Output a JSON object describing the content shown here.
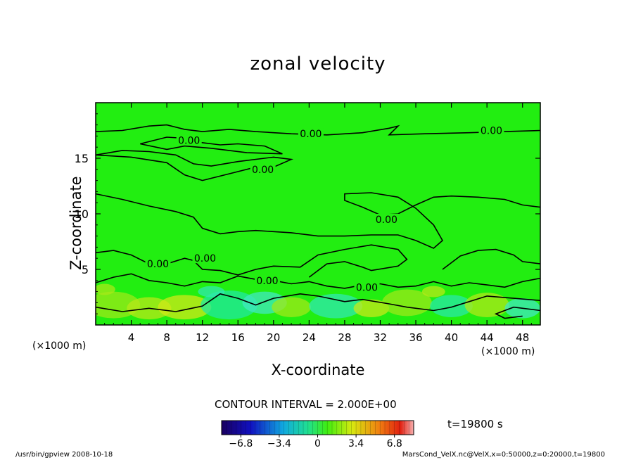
{
  "chart_data": {
    "type": "heatmap",
    "title": "zonal velocity",
    "xlabel": "X-coordinate",
    "ylabel": "Z-coordinate",
    "x_unit": "(×1000 m)",
    "y_unit": "(×1000 m)",
    "xlim": [
      0,
      50
    ],
    "ylim": [
      0,
      20
    ],
    "x_ticks": [
      4,
      8,
      12,
      16,
      20,
      24,
      28,
      32,
      36,
      40,
      44,
      48
    ],
    "y_ticks": [
      5,
      10,
      15
    ],
    "contour_interval_text": "CONTOUR INTERVAL = 2.000E+00",
    "contour_labels": [
      "0.00",
      "0.00",
      "0.00",
      "0.00",
      "0.00",
      "0.00",
      "0.00",
      "0.00",
      "0.00"
    ],
    "colorbar": {
      "ticks": [
        -6.8,
        -3.4,
        0,
        3.4,
        6.8
      ],
      "tick_labels": [
        "−6.8",
        "−3.4",
        "0",
        "3.4",
        "6.8"
      ],
      "range": [
        -8.5,
        8.5
      ]
    },
    "field_value_estimate": "near 0 throughout, small positive/negative patches below z=5",
    "time_label": "t=19800 s",
    "grid": false,
    "colors": {
      "field": "#22ee11",
      "colorbar_low": "#1a0060",
      "colorbar_mid": "#33ee00",
      "colorbar_high": "#e02010"
    }
  },
  "footer": {
    "left": "/usr/bin/gpview   2008-10-18",
    "right": "MarsCond_VelX.nc@VelX,x=0:50000,z=0:20000,t=19800"
  }
}
